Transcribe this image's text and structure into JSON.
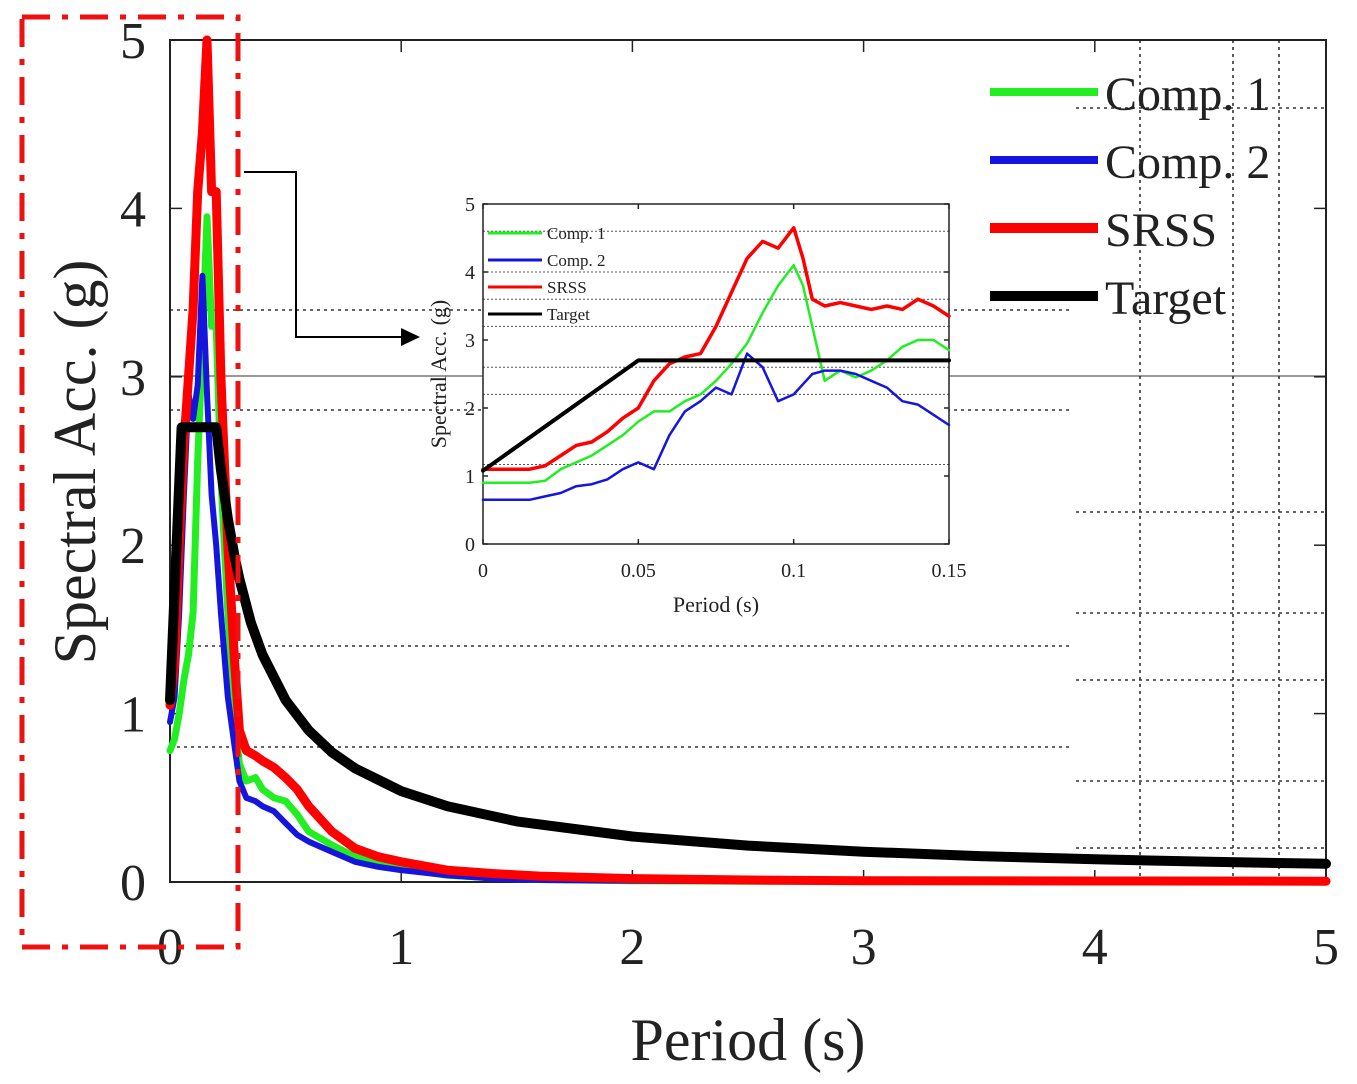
{
  "colors": {
    "comp1": "#22ee22",
    "comp2": "#1515dd",
    "srss": "#ff0000",
    "target": "#000000",
    "highlight": "#ee1111"
  },
  "chart_data": [
    {
      "id": "main",
      "type": "line",
      "xlabel": "Period (s)",
      "ylabel": "Spectral Acc. (g)",
      "xlim": [
        0,
        5
      ],
      "ylim": [
        0,
        5
      ],
      "xticks": [
        "0",
        "1",
        "2",
        "3",
        "4",
        "5"
      ],
      "yticks": [
        "0",
        "1",
        "2",
        "3",
        "4",
        "5"
      ],
      "legend": {
        "placement": "top-right",
        "entries": [
          "Comp. 1",
          "Comp. 2",
          "SRSS",
          "Target"
        ]
      },
      "series": [
        {
          "name": "Comp. 1",
          "x": [
            0,
            0.02,
            0.04,
            0.06,
            0.08,
            0.1,
            0.12,
            0.14,
            0.16,
            0.18,
            0.2,
            0.22,
            0.25,
            0.28,
            0.3,
            0.33,
            0.37,
            0.4,
            0.45,
            0.5,
            0.55,
            0.6,
            0.7,
            0.8,
            0.9,
            1.0,
            1.2,
            1.4,
            1.6,
            2.0,
            2.5,
            3.0,
            4.0,
            5.0
          ],
          "y": [
            0.78,
            0.85,
            1.0,
            1.2,
            1.35,
            1.6,
            2.5,
            3.2,
            3.95,
            3.3,
            3.3,
            2.4,
            1.6,
            0.95,
            0.7,
            0.6,
            0.62,
            0.55,
            0.5,
            0.48,
            0.4,
            0.3,
            0.22,
            0.15,
            0.11,
            0.08,
            0.04,
            0.025,
            0.015,
            0.008,
            0.005,
            0.004,
            0.003,
            0.002
          ]
        },
        {
          "name": "Comp. 2",
          "x": [
            0,
            0.02,
            0.04,
            0.06,
            0.08,
            0.1,
            0.12,
            0.14,
            0.16,
            0.18,
            0.2,
            0.22,
            0.25,
            0.28,
            0.3,
            0.33,
            0.37,
            0.4,
            0.45,
            0.5,
            0.55,
            0.6,
            0.7,
            0.8,
            0.9,
            1.0,
            1.2,
            1.4,
            1.6,
            2.0,
            2.5,
            3.0,
            4.0,
            5.0
          ],
          "y": [
            0.95,
            1.1,
            1.6,
            2.3,
            2.9,
            2.75,
            2.95,
            3.6,
            2.9,
            2.3,
            2.0,
            1.6,
            1.1,
            0.8,
            0.6,
            0.5,
            0.48,
            0.45,
            0.42,
            0.35,
            0.28,
            0.24,
            0.18,
            0.12,
            0.09,
            0.07,
            0.04,
            0.02,
            0.012,
            0.007,
            0.005,
            0.004,
            0.003,
            0.002
          ]
        },
        {
          "name": "SRSS",
          "x": [
            0,
            0.02,
            0.04,
            0.06,
            0.08,
            0.1,
            0.12,
            0.14,
            0.16,
            0.18,
            0.2,
            0.22,
            0.25,
            0.28,
            0.3,
            0.33,
            0.37,
            0.4,
            0.45,
            0.5,
            0.55,
            0.6,
            0.7,
            0.8,
            0.9,
            1.0,
            1.2,
            1.4,
            1.6,
            2.0,
            2.5,
            3.0,
            4.0,
            5.0
          ],
          "y": [
            1.05,
            1.3,
            2.0,
            2.6,
            3.0,
            3.4,
            4.1,
            4.45,
            5.0,
            4.1,
            4.1,
            3.0,
            2.0,
            1.3,
            0.9,
            0.78,
            0.75,
            0.72,
            0.68,
            0.62,
            0.55,
            0.45,
            0.3,
            0.2,
            0.15,
            0.12,
            0.07,
            0.05,
            0.035,
            0.02,
            0.012,
            0.008,
            0.006,
            0.005
          ]
        },
        {
          "name": "Target",
          "x": [
            0,
            0.05,
            0.08,
            0.1,
            0.125,
            0.15,
            0.175,
            0.2,
            0.22,
            0.25,
            0.28,
            0.3,
            0.35,
            0.4,
            0.5,
            0.6,
            0.7,
            0.8,
            1.0,
            1.2,
            1.5,
            2.0,
            2.5,
            3.0,
            3.5,
            4.0,
            4.5,
            5.0
          ],
          "y": [
            1.08,
            2.7,
            2.7,
            2.7,
            2.7,
            2.7,
            2.7,
            2.7,
            2.45,
            2.16,
            1.93,
            1.8,
            1.54,
            1.35,
            1.08,
            0.9,
            0.77,
            0.675,
            0.54,
            0.45,
            0.36,
            0.27,
            0.216,
            0.18,
            0.154,
            0.135,
            0.12,
            0.108
          ]
        }
      ]
    },
    {
      "id": "inset",
      "type": "line",
      "xlabel": "Period (s)",
      "ylabel": "Spectral Acc. (g)",
      "xlim": [
        0,
        0.15
      ],
      "ylim": [
        0,
        5
      ],
      "xticks": [
        "0",
        "0.05",
        "0.1",
        "0.15"
      ],
      "yticks": [
        "0",
        "1",
        "2",
        "3",
        "4",
        "5"
      ],
      "legend": {
        "placement": "top-left",
        "entries": [
          "Comp. 1",
          "Comp. 2",
          "SRSS",
          "Target"
        ]
      },
      "series": [
        {
          "name": "Comp. 1",
          "x": [
            0,
            0.01,
            0.015,
            0.02,
            0.025,
            0.03,
            0.035,
            0.04,
            0.045,
            0.05,
            0.055,
            0.06,
            0.065,
            0.07,
            0.075,
            0.08,
            0.085,
            0.09,
            0.095,
            0.1,
            0.103,
            0.106,
            0.11,
            0.115,
            0.12,
            0.125,
            0.13,
            0.135,
            0.14,
            0.145,
            0.15
          ],
          "y": [
            0.9,
            0.9,
            0.9,
            0.93,
            1.1,
            1.2,
            1.3,
            1.45,
            1.6,
            1.8,
            1.95,
            1.95,
            2.1,
            2.2,
            2.4,
            2.65,
            2.95,
            3.4,
            3.8,
            4.1,
            3.8,
            3.2,
            2.4,
            2.55,
            2.45,
            2.55,
            2.7,
            2.9,
            3.0,
            3.0,
            2.85
          ]
        },
        {
          "name": "Comp. 2",
          "x": [
            0,
            0.01,
            0.015,
            0.02,
            0.025,
            0.03,
            0.035,
            0.04,
            0.045,
            0.05,
            0.055,
            0.06,
            0.065,
            0.07,
            0.075,
            0.08,
            0.085,
            0.09,
            0.095,
            0.1,
            0.103,
            0.106,
            0.11,
            0.115,
            0.12,
            0.125,
            0.13,
            0.135,
            0.14,
            0.145,
            0.15
          ],
          "y": [
            0.65,
            0.65,
            0.65,
            0.7,
            0.75,
            0.85,
            0.88,
            0.95,
            1.1,
            1.2,
            1.1,
            1.6,
            1.95,
            2.1,
            2.3,
            2.2,
            2.8,
            2.6,
            2.1,
            2.2,
            2.35,
            2.5,
            2.55,
            2.55,
            2.5,
            2.4,
            2.3,
            2.1,
            2.05,
            1.9,
            1.75
          ]
        },
        {
          "name": "SRSS",
          "x": [
            0,
            0.01,
            0.015,
            0.02,
            0.025,
            0.03,
            0.035,
            0.04,
            0.045,
            0.05,
            0.055,
            0.06,
            0.065,
            0.07,
            0.075,
            0.08,
            0.085,
            0.09,
            0.095,
            0.1,
            0.103,
            0.106,
            0.11,
            0.115,
            0.12,
            0.125,
            0.13,
            0.135,
            0.14,
            0.145,
            0.15
          ],
          "y": [
            1.1,
            1.1,
            1.1,
            1.15,
            1.3,
            1.45,
            1.5,
            1.65,
            1.85,
            2.0,
            2.4,
            2.65,
            2.75,
            2.8,
            3.2,
            3.7,
            4.2,
            4.45,
            4.35,
            4.65,
            4.2,
            3.6,
            3.5,
            3.55,
            3.5,
            3.45,
            3.5,
            3.45,
            3.6,
            3.5,
            3.35
          ]
        },
        {
          "name": "Target",
          "x": [
            0,
            0.05,
            0.15
          ],
          "y": [
            1.08,
            2.7,
            2.7
          ]
        }
      ]
    }
  ]
}
